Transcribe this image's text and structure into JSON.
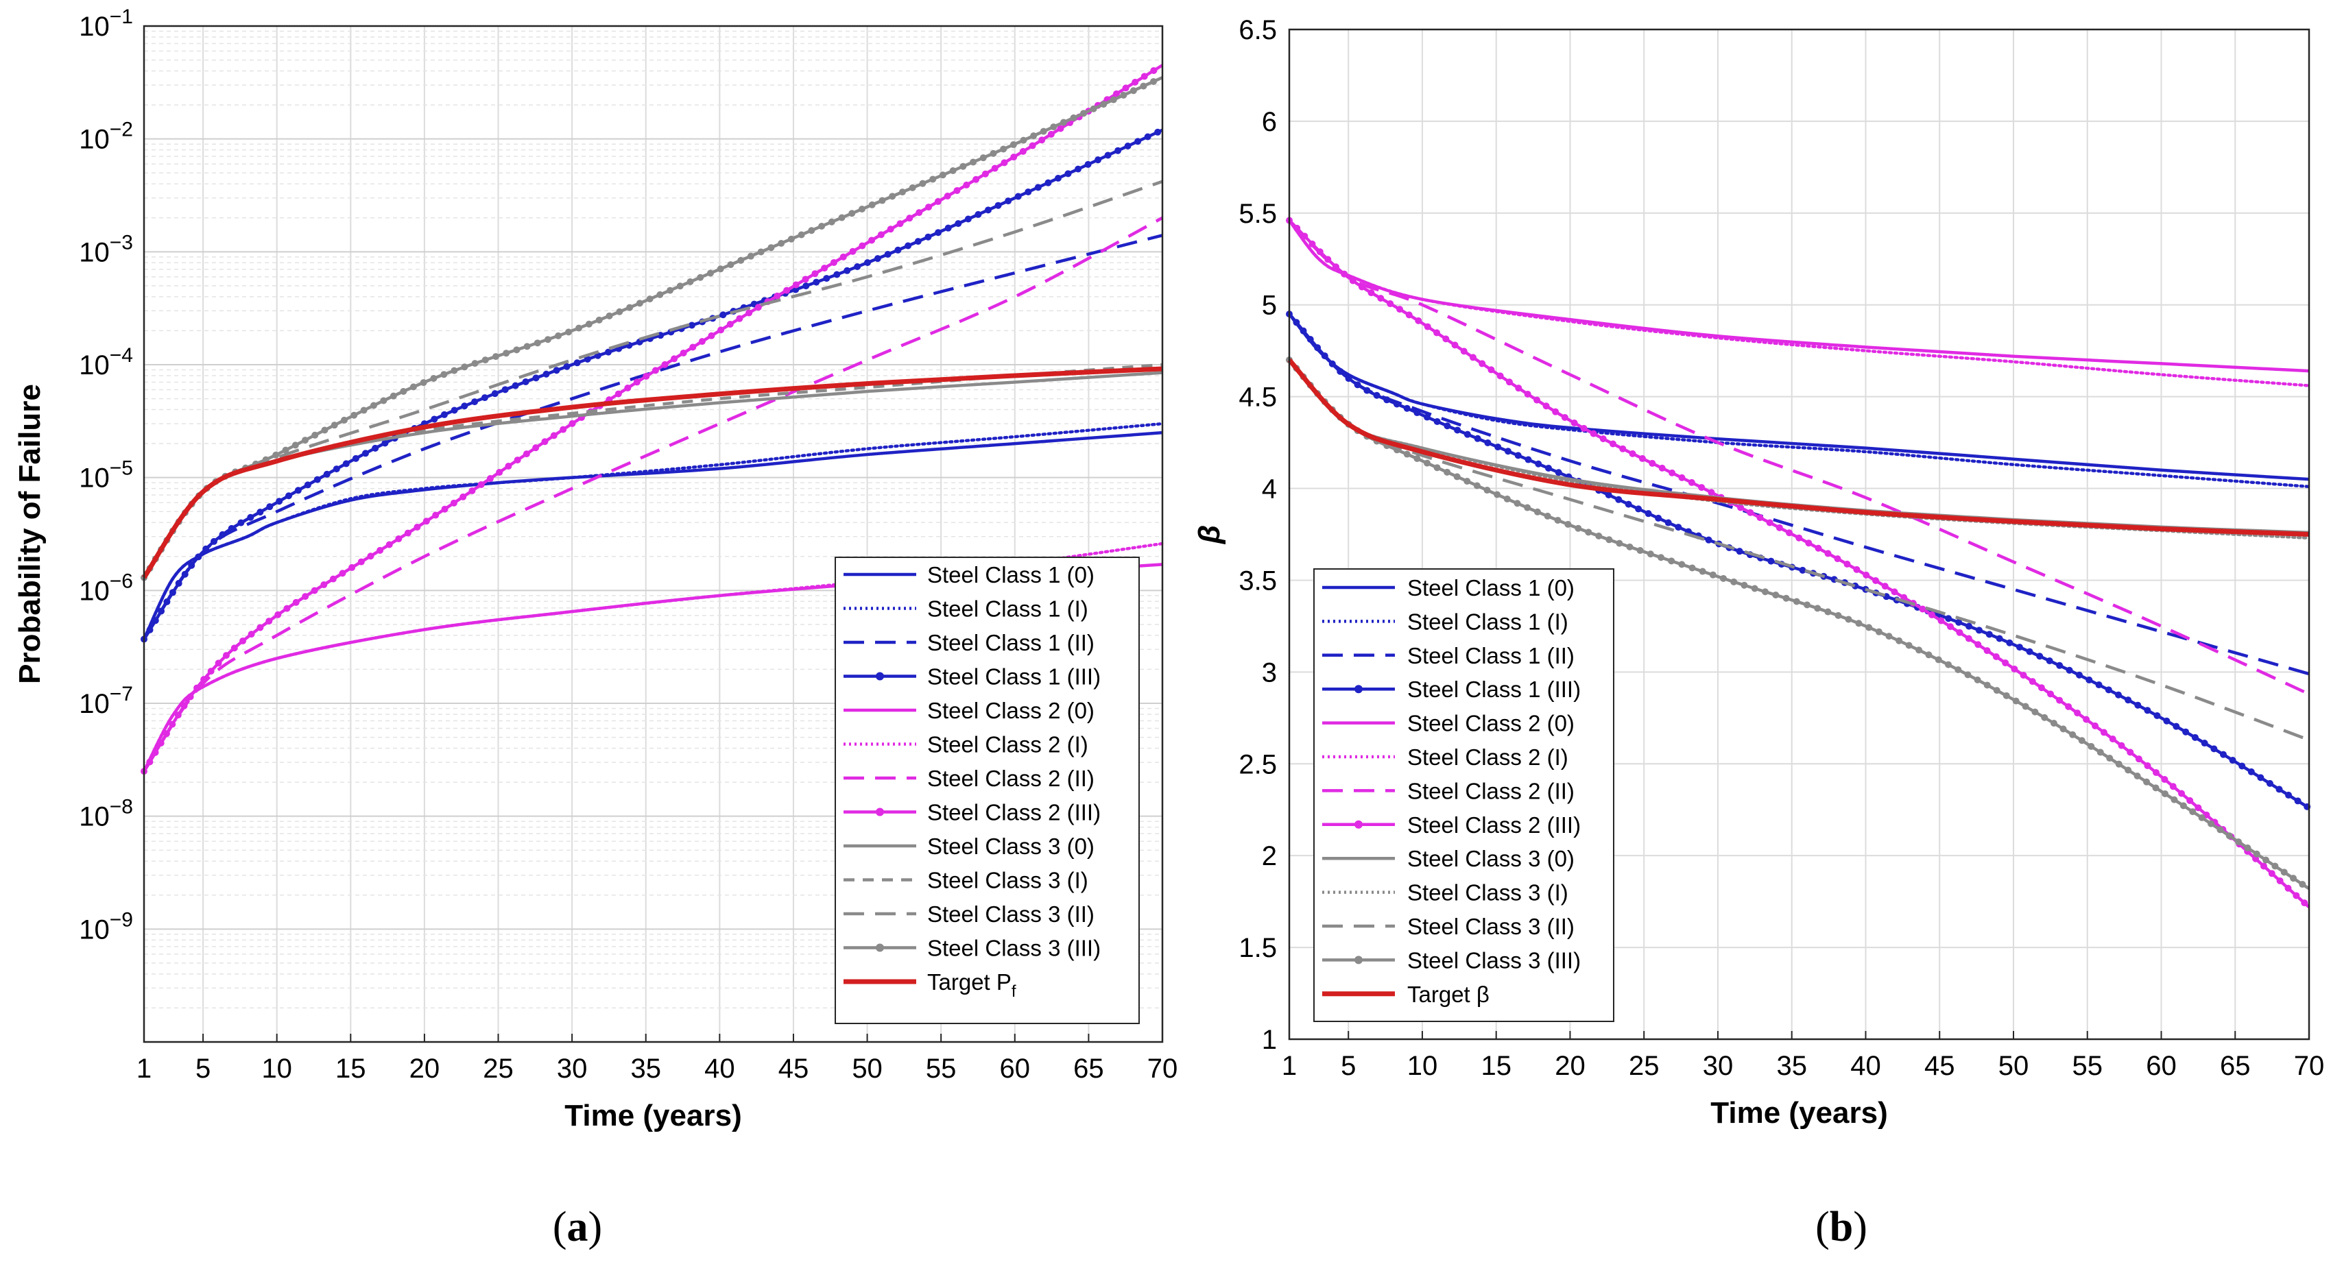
{
  "chart_data": [
    {
      "id": "a",
      "type": "line",
      "panel_label": "a",
      "xlabel": "Time (years)",
      "ylabel": "Probability of Failure",
      "yscale": "log",
      "xlim": [
        1,
        70
      ],
      "ylim_exp": [
        -10,
        -1
      ],
      "xticks": [
        1,
        5,
        10,
        15,
        20,
        25,
        30,
        35,
        40,
        45,
        50,
        55,
        60,
        65,
        70
      ],
      "yticks": [
        {
          "base": "10",
          "exp": "−9",
          "e": -9
        },
        {
          "base": "10",
          "exp": "−8",
          "e": -8
        },
        {
          "base": "10",
          "exp": "−7",
          "e": -7
        },
        {
          "base": "10",
          "exp": "−6",
          "e": -6
        },
        {
          "base": "10",
          "exp": "−5",
          "e": -5
        },
        {
          "base": "10",
          "exp": "−4",
          "e": -4
        },
        {
          "base": "10",
          "exp": "−3",
          "e": -3
        },
        {
          "base": "10",
          "exp": "−2",
          "e": -2
        },
        {
          "base": "10",
          "exp": "−1",
          "e": -1
        }
      ],
      "grid": true,
      "legend_position": "bottom-right",
      "series": [
        {
          "name": "Steel Class 1 (0)",
          "color": "#1f22c4",
          "dash": "solid",
          "marker": false,
          "x": [
            1,
            3,
            5,
            8,
            10,
            15,
            20,
            25,
            30,
            40,
            50,
            60,
            70
          ],
          "y": [
            3.7e-07,
            1.3e-06,
            2.1e-06,
            3e-06,
            4e-06,
            6.3e-06,
            7.8e-06,
            9e-06,
            1e-05,
            1.2e-05,
            1.6e-05,
            2e-05,
            2.5e-05
          ]
        },
        {
          "name": "Steel Class 1 (I)",
          "color": "#1f22c4",
          "dash": "dotted",
          "marker": false,
          "x": [
            1,
            3,
            5,
            8,
            10,
            15,
            20,
            25,
            30,
            40,
            50,
            60,
            70
          ],
          "y": [
            3.7e-07,
            1.3e-06,
            2.1e-06,
            3e-06,
            4e-06,
            6.5e-06,
            8e-06,
            9e-06,
            1e-05,
            1.3e-05,
            1.8e-05,
            2.3e-05,
            3e-05
          ]
        },
        {
          "name": "Steel Class 1 (II)",
          "color": "#1f22c4",
          "dash": "dashed",
          "marker": false,
          "x": [
            1,
            5,
            10,
            20,
            30,
            40,
            50,
            60,
            70
          ],
          "y": [
            3.7e-07,
            2.2e-06,
            5e-06,
            1.8e-05,
            5e-05,
            0.00013,
            0.0003,
            0.00065,
            0.0014
          ]
        },
        {
          "name": "Steel Class 1 (III)",
          "color": "#1f22c4",
          "dash": "solid",
          "marker": true,
          "x": [
            1,
            5,
            10,
            20,
            30,
            40,
            50,
            60,
            70
          ],
          "y": [
            3.7e-07,
            2.2e-06,
            6e-06,
            3e-05,
            0.0001,
            0.00027,
            0.0008,
            0.003,
            0.012
          ]
        },
        {
          "name": "Steel Class 2 (0)",
          "color": "#e02ae3",
          "dash": "solid",
          "marker": false,
          "x": [
            1,
            3,
            5,
            10,
            20,
            30,
            40,
            50,
            60,
            70
          ],
          "y": [
            2.5e-08,
            8e-08,
            1.4e-07,
            2.5e-07,
            4.5e-07,
            6.5e-07,
            9e-07,
            1.15e-06,
            1.4e-06,
            1.7e-06
          ]
        },
        {
          "name": "Steel Class 2 (I)",
          "color": "#e02ae3",
          "dash": "dotted",
          "marker": false,
          "x": [
            1,
            3,
            5,
            10,
            20,
            30,
            40,
            50,
            60,
            70
          ],
          "y": [
            2.5e-08,
            8e-08,
            1.4e-07,
            2.5e-07,
            4.5e-07,
            6.5e-07,
            9e-07,
            1.2e-06,
            1.7e-06,
            2.6e-06
          ]
        },
        {
          "name": "Steel Class 2 (II)",
          "color": "#e02ae3",
          "dash": "dashed",
          "marker": false,
          "x": [
            1,
            5,
            10,
            20,
            30,
            40,
            50,
            60,
            70
          ],
          "y": [
            2.5e-08,
            1.5e-07,
            4e-07,
            2e-06,
            8e-06,
            3e-05,
            0.00011,
            0.0004,
            0.002
          ]
        },
        {
          "name": "Steel Class 2 (III)",
          "color": "#e02ae3",
          "dash": "solid",
          "marker": true,
          "x": [
            1,
            5,
            10,
            20,
            30,
            40,
            50,
            60,
            70
          ],
          "y": [
            2.5e-08,
            1.6e-07,
            6e-07,
            4e-06,
            3e-05,
            0.0002,
            0.0012,
            0.007,
            0.045
          ]
        },
        {
          "name": "Steel Class 3 (0)",
          "color": "#8a8a8a",
          "dash": "solid",
          "marker": false,
          "x": [
            1,
            5,
            10,
            20,
            30,
            40,
            50,
            60,
            70
          ],
          "y": [
            1.3e-06,
            7.5e-06,
            1.4e-05,
            2.5e-05,
            3.5e-05,
            4.6e-05,
            5.8e-05,
            7e-05,
            8.5e-05
          ]
        },
        {
          "name": "Steel Class 3 (I)",
          "color": "#8a8a8a",
          "dash": "dashed-thin",
          "marker": false,
          "x": [
            1,
            5,
            10,
            20,
            30,
            40,
            50,
            60,
            70
          ],
          "y": [
            1.3e-06,
            7.5e-06,
            1.4e-05,
            2.6e-05,
            3.7e-05,
            5e-05,
            6.3e-05,
            8e-05,
            0.0001
          ]
        },
        {
          "name": "Steel Class 3 (II)",
          "color": "#8a8a8a",
          "dash": "dashed",
          "marker": false,
          "x": [
            1,
            5,
            10,
            20,
            30,
            40,
            50,
            60,
            70
          ],
          "y": [
            1.3e-06,
            7.5e-06,
            1.5e-05,
            4e-05,
            0.00011,
            0.00027,
            0.0006,
            0.0015,
            0.0042
          ]
        },
        {
          "name": "Steel Class 3 (III)",
          "color": "#8a8a8a",
          "dash": "solid",
          "marker": true,
          "x": [
            1,
            5,
            10,
            20,
            30,
            40,
            50,
            60,
            70
          ],
          "y": [
            1.3e-06,
            7.5e-06,
            1.6e-05,
            7e-05,
            0.0002,
            0.0007,
            0.0025,
            0.009,
            0.035
          ]
        },
        {
          "name": "Target P",
          "name_sub": "f",
          "color": "#d31f1f",
          "dash": "solid",
          "marker": false,
          "bold": true,
          "x": [
            1,
            5,
            10,
            20,
            30,
            40,
            50,
            60,
            70
          ],
          "y": [
            1.3e-06,
            7.5e-06,
            1.4e-05,
            2.8e-05,
            4.2e-05,
            5.5e-05,
            6.8e-05,
            8e-05,
            9.2e-05
          ]
        }
      ]
    },
    {
      "id": "b",
      "type": "line",
      "panel_label": "b",
      "xlabel": "Time (years)",
      "ylabel": "β",
      "yscale": "linear",
      "xlim": [
        1,
        70
      ],
      "ylim": [
        1,
        6.5
      ],
      "xticks": [
        1,
        5,
        10,
        15,
        20,
        25,
        30,
        35,
        40,
        45,
        50,
        55,
        60,
        65,
        70
      ],
      "yticks": [
        "1",
        "1.5",
        "2",
        "2.5",
        "3",
        "3.5",
        "4",
        "4.5",
        "5",
        "5.5",
        "6",
        "6.5"
      ],
      "grid": true,
      "legend_position": "bottom-left",
      "series": [
        {
          "name": "Steel Class 1 (0)",
          "color": "#1f22c4",
          "dash": "solid",
          "marker": false,
          "x": [
            1,
            3,
            5,
            8,
            10,
            15,
            20,
            30,
            40,
            50,
            60,
            70
          ],
          "y": [
            4.95,
            4.75,
            4.62,
            4.52,
            4.46,
            4.38,
            4.33,
            4.27,
            4.22,
            4.16,
            4.1,
            4.05
          ]
        },
        {
          "name": "Steel Class 1 (I)",
          "color": "#1f22c4",
          "dash": "dotted",
          "marker": false,
          "x": [
            1,
            3,
            5,
            8,
            10,
            15,
            20,
            30,
            40,
            50,
            60,
            70
          ],
          "y": [
            4.95,
            4.75,
            4.62,
            4.52,
            4.46,
            4.37,
            4.32,
            4.25,
            4.2,
            4.13,
            4.07,
            4.01
          ]
        },
        {
          "name": "Steel Class 1 (II)",
          "color": "#1f22c4",
          "dash": "dashed",
          "marker": false,
          "x": [
            1,
            5,
            10,
            20,
            30,
            40,
            50,
            60,
            70
          ],
          "y": [
            4.95,
            4.6,
            4.42,
            4.15,
            3.92,
            3.68,
            3.45,
            3.22,
            2.99
          ]
        },
        {
          "name": "Steel Class 1 (III)",
          "color": "#1f22c4",
          "dash": "solid",
          "marker": true,
          "x": [
            1,
            5,
            10,
            20,
            30,
            40,
            50,
            60,
            70
          ],
          "y": [
            4.95,
            4.6,
            4.4,
            4.06,
            3.7,
            3.45,
            3.15,
            2.75,
            2.26
          ]
        },
        {
          "name": "Steel Class 2 (0)",
          "color": "#e02ae3",
          "dash": "solid",
          "marker": false,
          "x": [
            1,
            3,
            5,
            10,
            20,
            30,
            40,
            50,
            60,
            70
          ],
          "y": [
            5.46,
            5.25,
            5.16,
            5.03,
            4.92,
            4.83,
            4.77,
            4.72,
            4.68,
            4.64
          ]
        },
        {
          "name": "Steel Class 2 (I)",
          "color": "#e02ae3",
          "dash": "dotted",
          "marker": false,
          "x": [
            1,
            3,
            5,
            10,
            20,
            30,
            40,
            50,
            60,
            70
          ],
          "y": [
            5.46,
            5.25,
            5.16,
            5.03,
            4.91,
            4.82,
            4.75,
            4.69,
            4.62,
            4.56
          ]
        },
        {
          "name": "Steel Class 2 (II)",
          "color": "#e02ae3",
          "dash": "dashed",
          "marker": false,
          "x": [
            1,
            5,
            10,
            20,
            30,
            40,
            50,
            60,
            70
          ],
          "y": [
            5.46,
            5.15,
            5.0,
            4.62,
            4.25,
            3.95,
            3.6,
            3.25,
            2.88
          ]
        },
        {
          "name": "Steel Class 2 (III)",
          "color": "#e02ae3",
          "dash": "solid",
          "marker": true,
          "x": [
            1,
            5,
            10,
            20,
            30,
            40,
            50,
            60,
            70
          ],
          "y": [
            5.46,
            5.15,
            4.9,
            4.37,
            3.96,
            3.53,
            3.02,
            2.43,
            1.72
          ]
        },
        {
          "name": "Steel Class 3 (0)",
          "color": "#8a8a8a",
          "dash": "solid",
          "marker": false,
          "x": [
            1,
            5,
            10,
            20,
            30,
            40,
            50,
            60,
            70
          ],
          "y": [
            4.7,
            4.35,
            4.22,
            4.05,
            3.95,
            3.88,
            3.83,
            3.79,
            3.76
          ]
        },
        {
          "name": "Steel Class 3 (I)",
          "color": "#8a8a8a",
          "dash": "dotted",
          "marker": false,
          "x": [
            1,
            5,
            10,
            20,
            30,
            40,
            50,
            60,
            70
          ],
          "y": [
            4.7,
            4.35,
            4.22,
            4.04,
            3.93,
            3.86,
            3.81,
            3.77,
            3.73
          ]
        },
        {
          "name": "Steel Class 3 (II)",
          "color": "#8a8a8a",
          "dash": "dashed",
          "marker": false,
          "x": [
            1,
            5,
            10,
            20,
            30,
            40,
            50,
            60,
            70
          ],
          "y": [
            4.7,
            4.35,
            4.18,
            3.94,
            3.7,
            3.45,
            3.2,
            2.93,
            2.63
          ]
        },
        {
          "name": "Steel Class 3 (III)",
          "color": "#8a8a8a",
          "dash": "solid",
          "marker": true,
          "x": [
            1,
            5,
            10,
            20,
            30,
            40,
            50,
            60,
            70
          ],
          "y": [
            4.7,
            4.35,
            4.15,
            3.8,
            3.52,
            3.25,
            2.85,
            2.35,
            1.82
          ]
        },
        {
          "name": "Target β",
          "color": "#d31f1f",
          "dash": "solid",
          "marker": false,
          "bold": true,
          "x": [
            1,
            5,
            10,
            20,
            30,
            40,
            50,
            60,
            70
          ],
          "y": [
            4.7,
            4.35,
            4.2,
            4.02,
            3.94,
            3.87,
            3.82,
            3.78,
            3.75
          ]
        }
      ]
    }
  ]
}
